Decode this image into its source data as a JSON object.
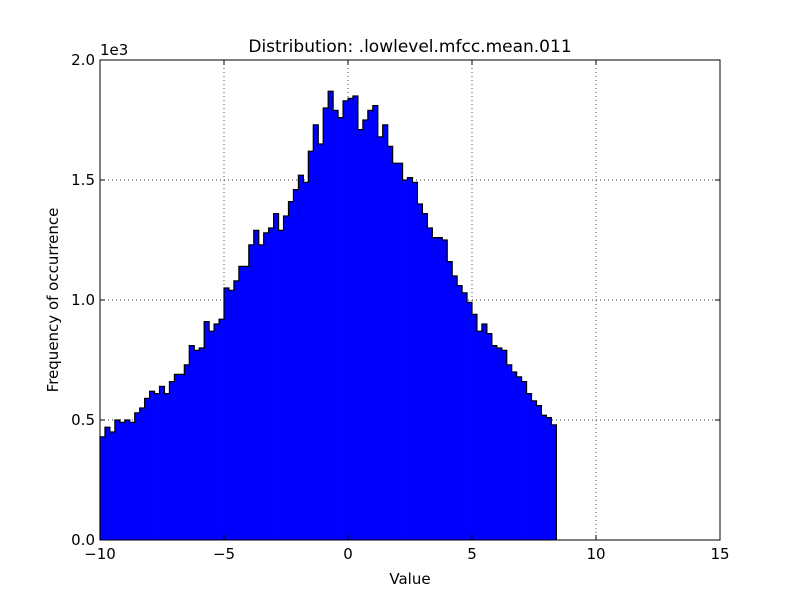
{
  "chart_data": {
    "type": "histogram",
    "title": "Distribution: .lowlevel.mfcc.mean.011",
    "xlabel": "Value",
    "ylabel": "Frequency of occurrence",
    "y_offset_label": "1e3",
    "xlim": [
      -10,
      15
    ],
    "ylim": [
      0,
      2000
    ],
    "xticks": [
      -10,
      -5,
      0,
      5,
      10,
      15
    ],
    "xtick_labels": [
      "−10",
      "−5",
      "0",
      "5",
      "10",
      "15"
    ],
    "yticks": [
      0,
      500,
      1000,
      1500,
      2000
    ],
    "ytick_labels": [
      "0.0",
      "0.5",
      "1.0",
      "1.5",
      "2.0"
    ],
    "grid": true,
    "fill_color": "#0000ff",
    "edge_color": "#000000",
    "bin_start": -10,
    "bin_width": 0.2,
    "counts": [
      430,
      470,
      450,
      500,
      490,
      500,
      490,
      530,
      550,
      590,
      620,
      610,
      640,
      610,
      660,
      690,
      690,
      730,
      810,
      790,
      800,
      910,
      870,
      900,
      920,
      1050,
      1040,
      1080,
      1140,
      1140,
      1230,
      1290,
      1230,
      1280,
      1300,
      1360,
      1290,
      1350,
      1410,
      1460,
      1520,
      1490,
      1620,
      1730,
      1650,
      1800,
      1870,
      1790,
      1760,
      1830,
      1840,
      1850,
      1710,
      1750,
      1790,
      1810,
      1680,
      1730,
      1640,
      1570,
      1570,
      1500,
      1510,
      1490,
      1400,
      1360,
      1300,
      1260,
      1260,
      1250,
      1160,
      1100,
      1060,
      1030,
      990,
      940,
      870,
      900,
      860,
      810,
      800,
      790,
      730,
      700,
      680,
      660,
      610,
      580,
      560,
      520,
      510,
      480
    ]
  }
}
